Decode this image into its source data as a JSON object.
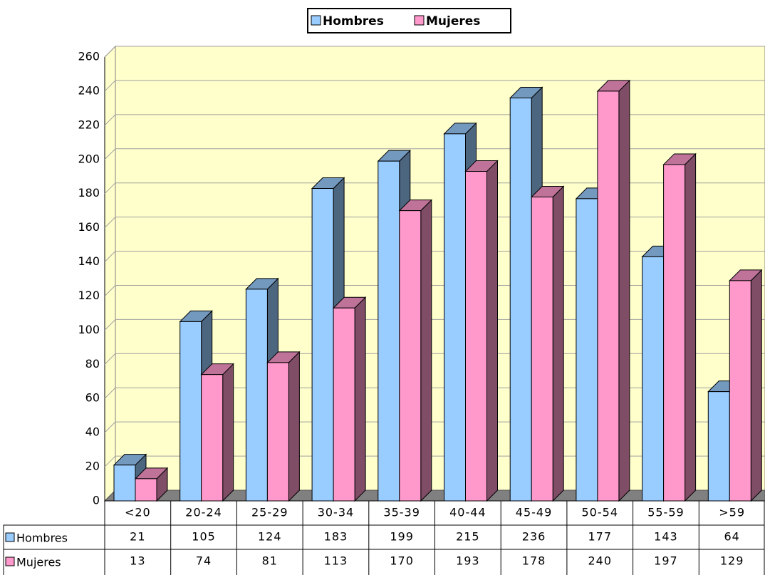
{
  "chart_data": {
    "type": "bar3d",
    "categories": [
      "<20",
      "20-24",
      "25-29",
      "30-34",
      "35-39",
      "40-44",
      "45-49",
      "50-54",
      "55-59",
      ">59"
    ],
    "series": [
      {
        "name": "Hombres",
        "color": "#99ccff",
        "values": [
          21,
          105,
          124,
          183,
          199,
          215,
          236,
          177,
          143,
          64
        ]
      },
      {
        "name": "Mujeres",
        "color": "#ff99cc",
        "values": [
          13,
          74,
          81,
          113,
          170,
          193,
          178,
          240,
          197,
          129
        ]
      }
    ],
    "ylim": [
      0,
      260
    ],
    "yticks": [
      0,
      20,
      40,
      60,
      80,
      100,
      120,
      140,
      160,
      180,
      200,
      220,
      240,
      260
    ],
    "grid": true,
    "legend": "top"
  }
}
